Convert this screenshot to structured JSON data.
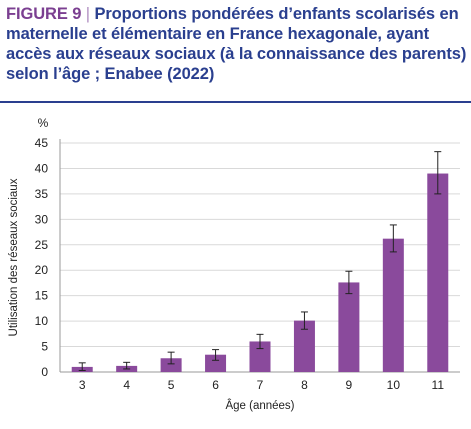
{
  "header": {
    "figure_label": "FIGURE 9",
    "separator": "|",
    "title": "Proportions pondérées d’enfants scolarisés en maternelle et élémentaire en France hexagonale, ayant accès aux réseaux sociaux (à la connaissance des parents) selon l’âge ; Enabee (2022)"
  },
  "colors": {
    "bar": "#8a4a9c",
    "title": "#2a3f8f",
    "figure_label": "#7b3f91"
  },
  "chart_data": {
    "type": "bar",
    "categories": [
      "3",
      "4",
      "5",
      "6",
      "7",
      "8",
      "9",
      "10",
      "11"
    ],
    "values": [
      1.0,
      1.2,
      2.7,
      3.4,
      6.0,
      10.1,
      17.6,
      26.2,
      39.0
    ],
    "error_low": [
      0.3,
      0.6,
      1.6,
      2.3,
      4.6,
      8.4,
      15.4,
      23.6,
      35.0
    ],
    "error_high": [
      1.8,
      1.9,
      3.9,
      4.4,
      7.4,
      11.8,
      19.8,
      28.9,
      43.3
    ],
    "unit": "%",
    "xlabel": "Âge (années)",
    "ylabel": "Utilisation des réseaux sociaux",
    "ylim": [
      0,
      45
    ],
    "yticks": [
      0,
      5,
      10,
      15,
      20,
      25,
      30,
      35,
      40,
      45
    ],
    "grid": true,
    "legend": false
  }
}
